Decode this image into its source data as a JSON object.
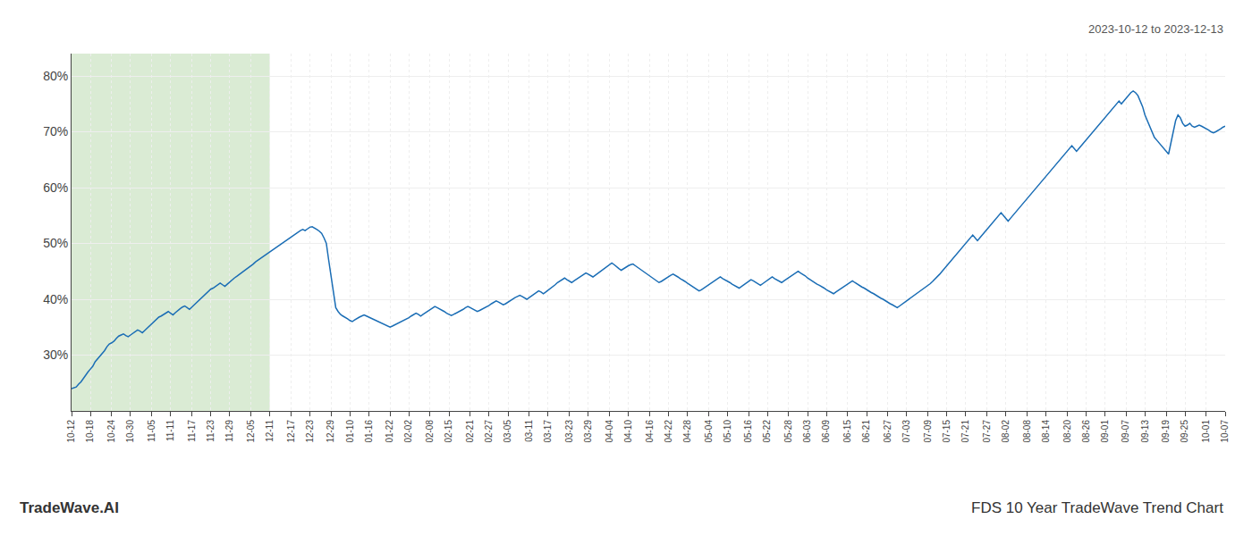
{
  "chart_data": {
    "type": "line",
    "color": "#1a6db5",
    "grid": true,
    "ylim": [
      20,
      84
    ],
    "yticks": [
      {
        "value": 30,
        "label": "30%"
      },
      {
        "value": 40,
        "label": "40%"
      },
      {
        "value": 50,
        "label": "50%"
      },
      {
        "value": 60,
        "label": "60%"
      },
      {
        "value": 70,
        "label": "70%"
      },
      {
        "value": 80,
        "label": "80%"
      }
    ],
    "shade": {
      "from": "10-12",
      "to": "12-11",
      "color": "#daebd4"
    },
    "annotations": [
      "2023-10-12 to 2023-12-13",
      "TradeWave.AI",
      "FDS 10 Year TradeWave Trend Chart"
    ],
    "categories": [
      "10-12",
      null,
      null,
      null,
      null,
      null,
      null,
      null,
      "10-18",
      null,
      null,
      null,
      null,
      null,
      null,
      null,
      null,
      "10-24",
      null,
      null,
      null,
      null,
      null,
      null,
      null,
      "10-30",
      null,
      null,
      null,
      null,
      null,
      null,
      null,
      null,
      "11-05",
      null,
      null,
      null,
      null,
      null,
      null,
      null,
      "11-11",
      null,
      null,
      null,
      null,
      null,
      null,
      null,
      null,
      "11-17",
      null,
      null,
      null,
      null,
      null,
      null,
      null,
      "11-23",
      null,
      null,
      null,
      null,
      null,
      null,
      null,
      "11-29",
      null,
      null,
      null,
      null,
      null,
      null,
      null,
      null,
      "12-05",
      null,
      null,
      null,
      null,
      null,
      null,
      null,
      "12-11",
      null,
      null,
      null,
      null,
      null,
      null,
      null,
      null,
      "12-17",
      null,
      null,
      null,
      null,
      null,
      null,
      null,
      "12-23",
      null,
      null,
      null,
      null,
      null,
      null,
      null,
      null,
      "12-29",
      null,
      null,
      null,
      null,
      null,
      null,
      null,
      "01-10",
      null,
      null,
      null,
      null,
      null,
      null,
      null,
      "01-16",
      null,
      null,
      null,
      null,
      null,
      null,
      null,
      null,
      "01-22",
      null,
      null,
      null,
      null,
      null,
      null,
      null,
      "02-02",
      null,
      null,
      null,
      null,
      null,
      null,
      null,
      null,
      "02-08",
      null,
      null,
      null,
      null,
      null,
      null,
      null,
      "02-15",
      null,
      null,
      null,
      null,
      null,
      null,
      null,
      null,
      "02-21",
      null,
      null,
      null,
      null,
      null,
      null,
      null,
      "02-27",
      null,
      null,
      null,
      null,
      null,
      null,
      null,
      "03-05",
      null,
      null,
      null,
      null,
      null,
      null,
      null,
      null,
      "03-11",
      null,
      null,
      null,
      null,
      null,
      null,
      null,
      "03-17",
      null,
      null,
      null,
      null,
      null,
      null,
      null,
      null,
      "03-23",
      null,
      null,
      null,
      null,
      null,
      null,
      null,
      "03-29",
      null,
      null,
      null,
      null,
      null,
      null,
      null,
      null,
      "04-04",
      null,
      null,
      null,
      null,
      null,
      null,
      null,
      "04-10",
      null,
      null,
      null,
      null,
      null,
      null,
      null,
      null,
      "04-16",
      null,
      null,
      null,
      null,
      null,
      null,
      null,
      "04-22",
      null,
      null,
      null,
      null,
      null,
      null,
      null,
      "04-28",
      null,
      null,
      null,
      null,
      null,
      null,
      null,
      null,
      "05-04",
      null,
      null,
      null,
      null,
      null,
      null,
      null,
      "05-10",
      null,
      null,
      null,
      null,
      null,
      null,
      null,
      null,
      "05-16",
      null,
      null,
      null,
      null,
      null,
      null,
      null,
      "05-22",
      null,
      null,
      null,
      null,
      null,
      null,
      null,
      null,
      "05-28",
      null,
      null,
      null,
      null,
      null,
      null,
      null,
      "06-03",
      null,
      null,
      null,
      null,
      null,
      null,
      null,
      "06-09",
      null,
      null,
      null,
      null,
      null,
      null,
      null,
      null,
      "06-15",
      null,
      null,
      null,
      null,
      null,
      null,
      null,
      "06-21",
      null,
      null,
      null,
      null,
      null,
      null,
      null,
      null,
      "06-27",
      null,
      null,
      null,
      null,
      null,
      null,
      null,
      "07-03",
      null,
      null,
      null,
      null,
      null,
      null,
      null,
      null,
      "07-09",
      null,
      null,
      null,
      null,
      null,
      null,
      null,
      "07-15",
      null,
      null,
      null,
      null,
      null,
      null,
      null,
      "07-21",
      null,
      null,
      null,
      null,
      null,
      null,
      null,
      null,
      "07-27",
      null,
      null,
      null,
      null,
      null,
      null,
      null,
      "08-02",
      null,
      null,
      null,
      null,
      null,
      null,
      null,
      null,
      "08-08",
      null,
      null,
      null,
      null,
      null,
      null,
      null,
      "08-14",
      null,
      null,
      null,
      null,
      null,
      null,
      null,
      null,
      "08-20",
      null,
      null,
      null,
      null,
      null,
      null,
      null,
      "08-26",
      null,
      null,
      null,
      null,
      null,
      null,
      null,
      "09-01",
      null,
      null,
      null,
      null,
      null,
      null,
      null,
      null,
      "09-07",
      null,
      null,
      null,
      null,
      null,
      null,
      null,
      "09-13",
      null,
      null,
      null,
      null,
      null,
      null,
      null,
      null,
      "09-19",
      null,
      null,
      null,
      null,
      null,
      null,
      null,
      "09-25",
      null,
      null,
      null,
      null,
      null,
      null,
      null,
      null,
      "10-01",
      null,
      null,
      null,
      null,
      null,
      null,
      null,
      "10-07"
    ],
    "values": [
      24.0,
      24.1,
      24.3,
      24.8,
      25.2,
      25.8,
      26.5,
      27.0,
      27.5,
      28.0,
      28.8,
      29.3,
      29.8,
      30.3,
      30.8,
      31.5,
      32.0,
      32.2,
      32.5,
      33.0,
      33.4,
      33.6,
      33.8,
      33.5,
      33.3,
      33.6,
      33.9,
      34.2,
      34.5,
      34.3,
      34.0,
      34.4,
      34.8,
      35.2,
      35.6,
      36.0,
      36.5,
      36.8,
      37.0,
      37.3,
      37.6,
      37.8,
      37.5,
      37.2,
      37.6,
      38.0,
      38.3,
      38.6,
      38.8,
      38.5,
      38.2,
      38.6,
      39.0,
      39.4,
      39.8,
      40.2,
      40.6,
      41.0,
      41.5,
      41.8,
      42.0,
      42.3,
      42.6,
      42.9,
      42.6,
      42.3,
      42.7,
      43.1,
      43.5,
      43.8,
      44.1,
      44.4,
      44.7,
      45.0,
      45.3,
      45.6,
      46.0,
      46.3,
      46.7,
      47.0,
      47.3,
      47.6,
      47.9,
      48.2,
      48.5,
      48.8,
      49.0,
      49.3,
      49.7,
      50.0,
      50.3,
      50.6,
      50.8,
      51.1,
      51.4,
      51.7,
      52.0,
      52.3,
      52.5,
      52.3,
      52.6,
      52.9,
      53.0,
      52.8,
      52.5,
      52.2,
      51.8,
      51.0,
      50.0,
      47.0,
      44.0,
      41.0,
      38.5,
      37.8,
      37.3,
      37.0,
      36.8,
      36.5,
      36.2,
      36.0,
      36.3,
      36.6,
      36.8,
      37.0,
      37.2,
      37.0,
      36.8,
      36.5,
      36.3,
      36.1,
      36.0,
      35.8,
      35.5,
      35.3,
      35.1,
      35.0,
      35.2,
      35.4,
      35.6,
      35.8,
      36.0,
      36.2,
      36.4,
      36.7,
      37.0,
      37.3,
      37.5,
      37.3,
      37.0,
      37.3,
      37.6,
      37.9,
      38.2,
      38.5,
      38.7,
      38.5,
      38.3,
      38.0,
      37.8,
      37.5,
      37.3,
      37.1,
      37.3,
      37.5,
      37.7,
      38.0,
      38.2,
      38.5,
      38.7,
      38.5,
      38.3,
      38.0,
      37.8,
      38.0,
      38.2,
      38.5,
      38.7,
      38.9,
      39.2,
      39.5,
      39.7,
      39.5,
      39.3,
      39.0,
      39.2,
      39.5,
      39.8,
      40.0,
      40.3,
      40.5,
      40.7,
      40.5,
      40.3,
      40.0,
      40.3,
      40.6,
      40.9,
      41.2,
      41.5,
      41.3,
      41.0,
      41.3,
      41.6,
      42.0,
      42.3,
      42.6,
      43.0,
      43.3,
      43.6,
      43.8,
      43.5,
      43.3,
      43.0,
      43.3,
      43.6,
      43.9,
      44.2,
      44.5,
      44.7,
      44.5,
      44.3,
      44.0,
      44.3,
      44.6,
      45.0,
      45.3,
      45.6,
      45.9,
      46.2,
      46.5,
      46.2,
      45.8,
      45.5,
      45.2,
      45.5,
      45.8,
      46.0,
      46.2,
      46.3,
      46.0,
      45.7,
      45.4,
      45.0,
      44.7,
      44.4,
      44.1,
      43.8,
      43.5,
      43.2,
      43.0,
      43.2,
      43.5,
      43.8,
      44.0,
      44.3,
      44.5,
      44.3,
      44.0,
      43.7,
      43.5,
      43.2,
      42.9,
      42.6,
      42.3,
      42.0,
      41.7,
      41.5,
      41.7,
      42.0,
      42.3,
      42.6,
      42.9,
      43.2,
      43.5,
      43.8,
      44.0,
      43.7,
      43.5,
      43.2,
      43.0,
      42.7,
      42.5,
      42.2,
      42.0,
      42.3,
      42.6,
      42.9,
      43.2,
      43.5,
      43.3,
      43.0,
      42.7,
      42.5,
      42.8,
      43.1,
      43.4,
      43.7,
      44.0,
      43.7,
      43.5,
      43.2,
      43.0,
      43.3,
      43.6,
      43.9,
      44.2,
      44.5,
      44.8,
      45.0,
      44.7,
      44.5,
      44.2,
      43.8,
      43.5,
      43.2,
      43.0,
      42.7,
      42.5,
      42.3,
      42.0,
      41.7,
      41.5,
      41.2,
      41.0,
      41.3,
      41.6,
      41.9,
      42.2,
      42.5,
      42.7,
      43.0,
      43.3,
      43.0,
      42.7,
      42.5,
      42.2,
      42.0,
      41.7,
      41.5,
      41.2,
      41.0,
      40.7,
      40.5,
      40.2,
      40.0,
      39.7,
      39.5,
      39.2,
      39.0,
      38.8,
      38.5,
      38.8,
      39.1,
      39.4,
      39.7,
      40.0,
      40.3,
      40.6,
      40.9,
      41.2,
      41.5,
      41.8,
      42.2,
      42.5,
      42.8,
      43.2,
      43.6,
      44.0,
      44.5,
      45.0,
      45.5,
      46.0,
      46.5,
      47.0,
      47.5,
      48.0,
      48.5,
      49.0,
      49.5,
      50.0,
      50.5,
      51.0,
      51.5,
      51.0,
      50.5,
      51.0,
      51.5,
      52.0,
      52.5,
      53.0,
      53.5,
      54.0,
      54.5,
      55.0,
      55.5,
      55.0,
      54.5,
      54.0,
      54.5,
      55.0,
      55.5,
      56.0,
      56.5,
      57.0,
      57.5,
      58.0,
      58.5,
      59.0,
      59.5,
      60.0,
      60.5,
      61.0,
      61.5,
      62.0,
      62.5,
      63.0,
      63.5,
      64.0,
      64.5,
      65.0,
      65.5,
      66.0,
      66.5,
      67.0,
      67.5,
      67.0,
      66.5,
      67.0,
      67.5,
      68.0,
      68.5,
      69.0,
      69.5,
      70.0,
      70.5,
      71.0,
      71.5,
      72.0,
      72.5,
      73.0,
      73.5,
      74.0,
      74.5,
      75.0,
      75.5,
      75.0,
      75.5,
      76.0,
      76.5,
      77.0,
      77.3,
      77.0,
      76.5,
      75.5,
      74.5,
      73.0,
      72.0,
      71.0,
      70.0,
      69.0,
      68.5,
      68.0,
      67.5,
      67.0,
      66.5,
      66.0,
      68.0,
      70.0,
      72.0,
      73.0,
      72.5,
      71.5,
      71.0,
      71.2,
      71.5,
      71.0,
      70.8,
      71.0,
      71.2,
      71.0,
      70.8,
      70.5,
      70.3,
      70.0,
      69.8,
      70.0,
      70.2,
      70.5,
      70.8,
      71.0
    ]
  }
}
